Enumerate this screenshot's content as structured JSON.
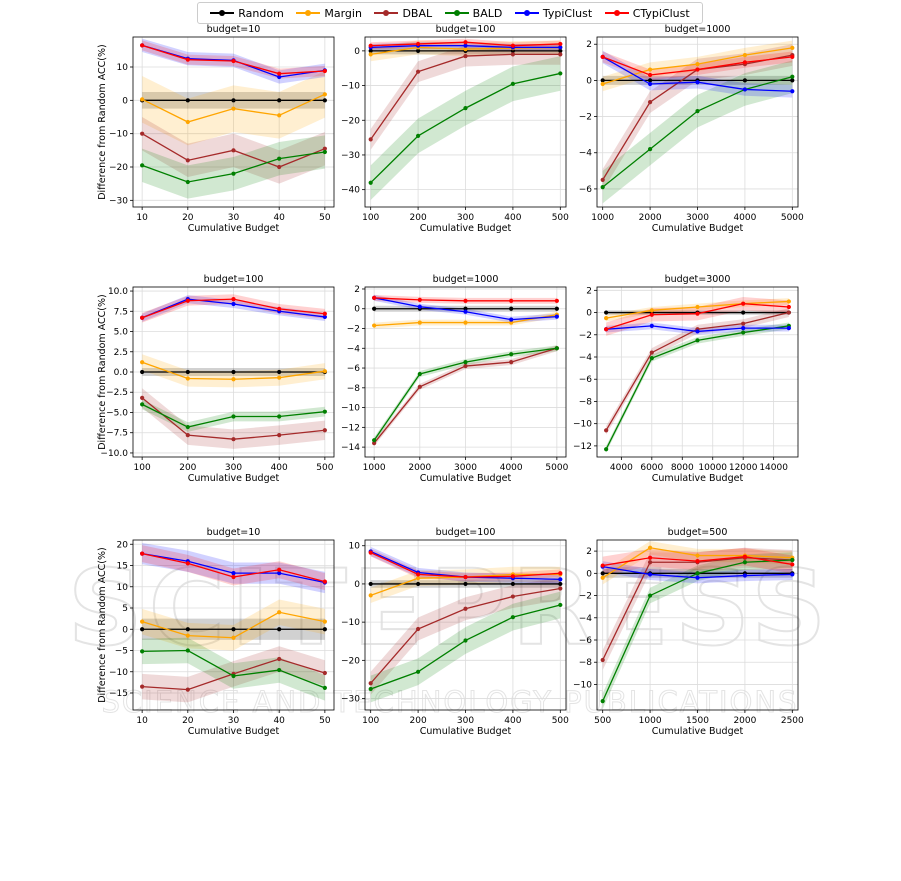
{
  "legend": {
    "items": [
      {
        "label": "Random",
        "color": "#000000"
      },
      {
        "label": "Margin",
        "color": "#ffa500"
      },
      {
        "label": "DBAL",
        "color": "#a52a2a"
      },
      {
        "label": "BALD",
        "color": "#008000"
      },
      {
        "label": "TypiClust",
        "color": "#0000ff"
      },
      {
        "label": "CTypiClust",
        "color": "#ff0000"
      }
    ]
  },
  "watermark": {
    "line1": "SCITEPRESS",
    "line2": "SCIENCE AND TECHNOLOGY PUBLICATIONS"
  },
  "chart_data": [
    {
      "type": "line",
      "title": "budget=10",
      "xlabel": "Cumulative Budget",
      "ylabel": "Difference from Random ACC(%)",
      "x": [
        10,
        20,
        30,
        40,
        50
      ],
      "xticks": [
        10,
        20,
        30,
        40,
        50
      ],
      "xticklabels": [
        "10",
        "20",
        "30",
        "40",
        "50"
      ],
      "xlim": [
        8,
        52
      ],
      "ylim": [
        -32,
        19
      ],
      "yticks": [
        -30,
        -20,
        -10,
        0,
        10
      ],
      "yticklabels": [
        "−30",
        "−20",
        "−10",
        "0",
        "10"
      ],
      "grid": true,
      "series": [
        {
          "name": "Random",
          "values": [
            0,
            0,
            0,
            0,
            0
          ],
          "band": 2.5
        },
        {
          "name": "Margin",
          "values": [
            0.3,
            -6.5,
            -2.5,
            -4.5,
            1.8
          ],
          "band": 7
        },
        {
          "name": "DBAL",
          "values": [
            -10,
            -18,
            -15,
            -20,
            -14.5
          ],
          "band": 5
        },
        {
          "name": "BALD",
          "values": [
            -19.5,
            -24.5,
            -22,
            -17.5,
            -15.5
          ],
          "band": 5
        },
        {
          "name": "TypiClust",
          "values": [
            16.5,
            12.5,
            12,
            7,
            9
          ],
          "band": 2
        },
        {
          "name": "CTypiClust",
          "values": [
            16.5,
            12.2,
            11.8,
            8,
            8.8
          ],
          "band": 1.5
        }
      ]
    },
    {
      "type": "line",
      "title": "budget=100",
      "xlabel": "Cumulative Budget",
      "ylabel": "",
      "x": [
        100,
        200,
        300,
        400,
        500
      ],
      "xticks": [
        100,
        200,
        300,
        400,
        500
      ],
      "xticklabels": [
        "100",
        "200",
        "300",
        "400",
        "500"
      ],
      "xlim": [
        88,
        512
      ],
      "ylim": [
        -45,
        4
      ],
      "yticks": [
        -40,
        -30,
        -20,
        -10,
        0
      ],
      "yticklabels": [
        "−40",
        "−30",
        "−20",
        "−10",
        "0"
      ],
      "grid": true,
      "series": [
        {
          "name": "Random",
          "values": [
            0,
            0,
            0,
            0,
            0
          ],
          "band": 1
        },
        {
          "name": "Margin",
          "values": [
            -1,
            1,
            0.5,
            0.8,
            1
          ],
          "band": 2
        },
        {
          "name": "DBAL",
          "values": [
            -25.5,
            -6,
            -1.5,
            -1,
            -1
          ],
          "band": 3
        },
        {
          "name": "BALD",
          "values": [
            -38,
            -24.5,
            -16.5,
            -9.5,
            -6.5
          ],
          "band": 5
        },
        {
          "name": "TypiClust",
          "values": [
            1,
            1.5,
            1.5,
            1,
            1
          ],
          "band": 1
        },
        {
          "name": "CTypiClust",
          "values": [
            1.5,
            2,
            2.5,
            1.5,
            2
          ],
          "band": 1
        }
      ]
    },
    {
      "type": "line",
      "title": "budget=1000",
      "xlabel": "Cumulative Budget",
      "ylabel": "",
      "x": [
        1000,
        2000,
        3000,
        4000,
        5000
      ],
      "xticks": [
        1000,
        2000,
        3000,
        4000,
        5000
      ],
      "xticklabels": [
        "1000",
        "2000",
        "3000",
        "4000",
        "5000"
      ],
      "xlim": [
        880,
        5120
      ],
      "ylim": [
        -7,
        2.4
      ],
      "yticks": [
        -6,
        -4,
        -2,
        0,
        2
      ],
      "yticklabels": [
        "−6",
        "−4",
        "−2",
        "0",
        "2"
      ],
      "grid": true,
      "series": [
        {
          "name": "Random",
          "values": [
            0,
            0,
            0,
            0,
            0
          ],
          "band": 0.25
        },
        {
          "name": "Margin",
          "values": [
            -0.2,
            0.6,
            0.9,
            1.4,
            1.8
          ],
          "band": 0.4
        },
        {
          "name": "DBAL",
          "values": [
            -5.5,
            -1.2,
            0.6,
            0.9,
            1.4
          ],
          "band": 0.6
        },
        {
          "name": "BALD",
          "values": [
            -5.9,
            -3.8,
            -1.7,
            -0.5,
            0.2
          ],
          "band": 0.9
        },
        {
          "name": "TypiClust",
          "values": [
            1.3,
            -0.2,
            -0.1,
            -0.5,
            -0.6
          ],
          "band": 0.35
        },
        {
          "name": "CTypiClust",
          "values": [
            1.3,
            0.3,
            0.6,
            1,
            1.3
          ],
          "band": 0.3
        }
      ]
    },
    {
      "type": "line",
      "title": "budget=100",
      "xlabel": "Cumulative Budget",
      "ylabel": "Difference from Random ACC(%)",
      "x": [
        100,
        200,
        300,
        400,
        500
      ],
      "xticks": [
        100,
        200,
        300,
        400,
        500
      ],
      "xticklabels": [
        "100",
        "200",
        "300",
        "400",
        "500"
      ],
      "xlim": [
        80,
        520
      ],
      "ylim": [
        -10.5,
        10.5
      ],
      "yticks": [
        -10,
        -7.5,
        -5,
        -2.5,
        0,
        2.5,
        5,
        7.5,
        10
      ],
      "yticklabels": [
        "−10.0",
        "−7.5",
        "−5.0",
        "−2.5",
        "0.0",
        "2.5",
        "5.0",
        "7.5",
        "10.0"
      ],
      "grid": true,
      "series": [
        {
          "name": "Random",
          "values": [
            0,
            0,
            0,
            0,
            0
          ],
          "band": 0.5
        },
        {
          "name": "Margin",
          "values": [
            1.2,
            -0.8,
            -0.9,
            -0.7,
            0.1
          ],
          "band": 1
        },
        {
          "name": "DBAL",
          "values": [
            -3.2,
            -7.8,
            -8.3,
            -7.8,
            -7.2
          ],
          "band": 1.2
        },
        {
          "name": "BALD",
          "values": [
            -4,
            -6.8,
            -5.5,
            -5.5,
            -4.9
          ],
          "band": 0.6
        },
        {
          "name": "TypiClust",
          "values": [
            6.7,
            9,
            8.4,
            7.5,
            6.8
          ],
          "band": 0.5
        },
        {
          "name": "CTypiClust",
          "values": [
            6.7,
            8.8,
            9,
            7.8,
            7.2
          ],
          "band": 0.6
        }
      ]
    },
    {
      "type": "line",
      "title": "budget=1000",
      "xlabel": "Cumulative Budget",
      "ylabel": "",
      "x": [
        1000,
        2000,
        3000,
        4000,
        5000
      ],
      "xticks": [
        1000,
        2000,
        3000,
        4000,
        5000
      ],
      "xticklabels": [
        "1000",
        "2000",
        "3000",
        "4000",
        "5000"
      ],
      "xlim": [
        800,
        5200
      ],
      "ylim": [
        -15,
        2.2
      ],
      "yticks": [
        -14,
        -12,
        -10,
        -8,
        -6,
        -4,
        -2,
        0,
        2
      ],
      "yticklabels": [
        "−14",
        "−12",
        "−10",
        "−8",
        "−6",
        "−4",
        "−2",
        "0",
        "2"
      ],
      "grid": true,
      "series": [
        {
          "name": "Random",
          "values": [
            0,
            0,
            0,
            0,
            0
          ],
          "band": 0.3
        },
        {
          "name": "Margin",
          "values": [
            -1.7,
            -1.4,
            -1.4,
            -1.4,
            -0.6
          ],
          "band": 0.3
        },
        {
          "name": "DBAL",
          "values": [
            -13.6,
            -7.9,
            -5.8,
            -5.4,
            -4
          ],
          "band": 0.3
        },
        {
          "name": "BALD",
          "values": [
            -13.3,
            -6.6,
            -5.4,
            -4.6,
            -4
          ],
          "band": 0.3
        },
        {
          "name": "TypiClust",
          "values": [
            1.1,
            0.2,
            -0.3,
            -1.1,
            -0.8
          ],
          "band": 0.3
        },
        {
          "name": "CTypiClust",
          "values": [
            1.1,
            0.9,
            0.8,
            0.8,
            0.8
          ],
          "band": 0.3
        }
      ]
    },
    {
      "type": "line",
      "title": "budget=3000",
      "xlabel": "Cumulative Budget",
      "ylabel": "",
      "x": [
        3000,
        6000,
        9000,
        12000,
        15000
      ],
      "xticks": [
        4000,
        6000,
        8000,
        10000,
        12000,
        14000
      ],
      "xticklabels": [
        "4000",
        "6000",
        "8000",
        "10000",
        "12000",
        "14000"
      ],
      "xlim": [
        2400,
        15600
      ],
      "ylim": [
        -13,
        2.3
      ],
      "yticks": [
        -12,
        -10,
        -8,
        -6,
        -4,
        -2,
        0,
        2
      ],
      "yticklabels": [
        "−12",
        "−10",
        "−8",
        "−6",
        "−4",
        "−2",
        "0",
        "2"
      ],
      "grid": true,
      "series": [
        {
          "name": "Random",
          "values": [
            0,
            0,
            0,
            0,
            0
          ],
          "band": 0.2
        },
        {
          "name": "Margin",
          "values": [
            -0.5,
            0.2,
            0.5,
            0.8,
            1
          ],
          "band": 0.3
        },
        {
          "name": "DBAL",
          "values": [
            -10.6,
            -3.6,
            -1.5,
            -1,
            0
          ],
          "band": 0.4
        },
        {
          "name": "BALD",
          "values": [
            -12.3,
            -4.1,
            -2.5,
            -1.8,
            -1.2
          ],
          "band": 0.3
        },
        {
          "name": "TypiClust",
          "values": [
            -1.5,
            -1.2,
            -1.7,
            -1.4,
            -1.4
          ],
          "band": 0.3
        },
        {
          "name": "CTypiClust",
          "values": [
            -1.5,
            -0.2,
            -0.1,
            0.8,
            0.5
          ],
          "band": 0.6
        }
      ]
    },
    {
      "type": "line",
      "title": "budget=10",
      "xlabel": "Cumulative Budget",
      "ylabel": "Difference from Random ACC(%)",
      "x": [
        10,
        20,
        30,
        40,
        50
      ],
      "xticks": [
        10,
        20,
        30,
        40,
        50
      ],
      "xticklabels": [
        "10",
        "20",
        "30",
        "40",
        "50"
      ],
      "xlim": [
        8,
        52
      ],
      "ylim": [
        -19,
        21
      ],
      "yticks": [
        -15,
        -10,
        -5,
        0,
        5,
        10,
        15,
        20
      ],
      "yticklabels": [
        "−15",
        "−10",
        "−5",
        "0",
        "5",
        "10",
        "15",
        "20"
      ],
      "grid": true,
      "series": [
        {
          "name": "Random",
          "values": [
            0,
            0,
            0,
            0,
            0
          ],
          "band": 2.5
        },
        {
          "name": "Margin",
          "values": [
            1.8,
            -1.5,
            -2,
            4,
            1.8
          ],
          "band": 3
        },
        {
          "name": "DBAL",
          "values": [
            -13.5,
            -14.2,
            -10.5,
            -7,
            -10.3
          ],
          "band": 3
        },
        {
          "name": "BALD",
          "values": [
            -5.2,
            -5,
            -11,
            -9.6,
            -13.8
          ],
          "band": 3
        },
        {
          "name": "TypiClust",
          "values": [
            17.8,
            16,
            13.2,
            13.2,
            11
          ],
          "band": 2.5
        },
        {
          "name": "CTypiClust",
          "values": [
            17.8,
            15.5,
            12.3,
            14,
            11.2
          ],
          "band": 2
        }
      ]
    },
    {
      "type": "line",
      "title": "budget=100",
      "xlabel": "Cumulative Budget",
      "ylabel": "",
      "x": [
        100,
        200,
        300,
        400,
        500
      ],
      "xticks": [
        100,
        200,
        300,
        400,
        500
      ],
      "xticklabels": [
        "100",
        "200",
        "300",
        "400",
        "500"
      ],
      "xlim": [
        88,
        512
      ],
      "ylim": [
        -33,
        11.5
      ],
      "yticks": [
        -30,
        -20,
        -10,
        0,
        10
      ],
      "yticklabels": [
        "−30",
        "−20",
        "−10",
        "0",
        "10"
      ],
      "grid": true,
      "series": [
        {
          "name": "Random",
          "values": [
            0,
            0,
            0,
            0,
            0
          ],
          "band": 1
        },
        {
          "name": "Margin",
          "values": [
            -3,
            1.5,
            1.8,
            2.5,
            2.5
          ],
          "band": 2
        },
        {
          "name": "DBAL",
          "values": [
            -26,
            -11.8,
            -6.5,
            -3.3,
            -1.2
          ],
          "band": 3
        },
        {
          "name": "BALD",
          "values": [
            -27.5,
            -23,
            -14.8,
            -8.7,
            -5.5
          ],
          "band": 3.5
        },
        {
          "name": "TypiClust",
          "values": [
            8.5,
            3,
            1.8,
            1.5,
            1.2
          ],
          "band": 1.2
        },
        {
          "name": "CTypiClust",
          "values": [
            8.2,
            2.5,
            1.8,
            2,
            2.8
          ],
          "band": 1
        }
      ]
    },
    {
      "type": "line",
      "title": "budget=500",
      "xlabel": "Cumulative Budget",
      "ylabel": "",
      "x": [
        500,
        1000,
        1500,
        2000,
        2500
      ],
      "xticks": [
        500,
        1000,
        1500,
        2000,
        2500
      ],
      "xticklabels": [
        "500",
        "1000",
        "1500",
        "2000",
        "2500"
      ],
      "xlim": [
        440,
        2560
      ],
      "ylim": [
        -12.3,
        3
      ],
      "yticks": [
        -10,
        -8,
        -6,
        -4,
        -2,
        0,
        2
      ],
      "yticklabels": [
        "−10",
        "−8",
        "−6",
        "−4",
        "−2",
        "0",
        "2"
      ],
      "grid": true,
      "series": [
        {
          "name": "Random",
          "values": [
            0,
            0,
            0,
            0,
            0
          ],
          "band": 0.4
        },
        {
          "name": "Margin",
          "values": [
            -0.4,
            2.3,
            1.6,
            1.6,
            1.4
          ],
          "band": 0.6
        },
        {
          "name": "DBAL",
          "values": [
            -7.8,
            1,
            1,
            1.4,
            1.2
          ],
          "band": 0.9
        },
        {
          "name": "BALD",
          "values": [
            -11.5,
            -2,
            0,
            1,
            1.2
          ],
          "band": 0.7
        },
        {
          "name": "TypiClust",
          "values": [
            0.6,
            -0.1,
            -0.4,
            -0.2,
            -0.1
          ],
          "band": 0.5
        },
        {
          "name": "CTypiClust",
          "values": [
            0.7,
            1.4,
            1.1,
            1.5,
            0.8
          ],
          "band": 0.8
        }
      ]
    }
  ]
}
